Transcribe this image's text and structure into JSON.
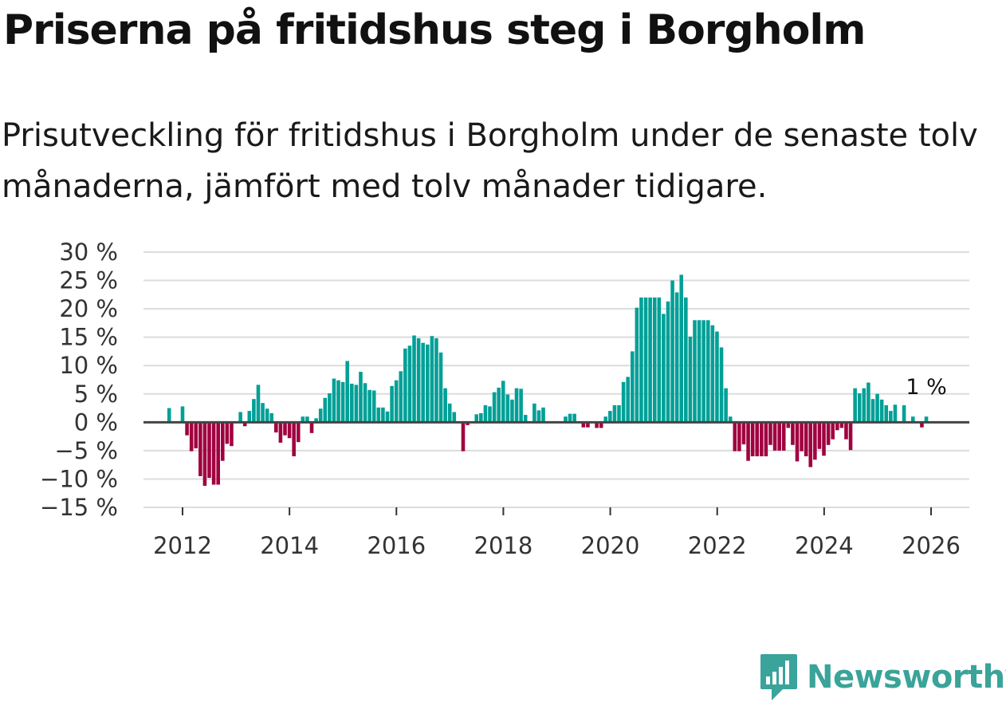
{
  "title": "Priserna på fritidshus steg i Borgholm",
  "subtitle": "Prisutveckling för fritidshus i Borgholm under de senaste tolv månaderna, jämfört med tolv månader tidigare.",
  "brand": "Newsworthy",
  "colors": {
    "positive": "#00a097",
    "negative": "#a0003f",
    "brand": "#3aa39a"
  },
  "chart_data": {
    "type": "bar",
    "title": "Priserna på fritidshus steg i Borgholm",
    "xlabel": "",
    "ylabel": "",
    "ylim": [
      -15,
      30
    ],
    "y_ticks": [
      30,
      25,
      20,
      15,
      10,
      5,
      0,
      -5,
      -10,
      -15
    ],
    "y_tick_labels": [
      "30 %",
      "25 %",
      "20 %",
      "15 %",
      "10 %",
      "5 %",
      "0 %",
      "−5 %",
      "−10 %",
      "−15 %"
    ],
    "x_ticks": [
      2012,
      2014,
      2016,
      2018,
      2020,
      2022,
      2024,
      2026
    ],
    "x_tick_labels": [
      "2012",
      "2014",
      "2016",
      "2018",
      "2020",
      "2022",
      "2024",
      "2026"
    ],
    "x_start": 2011.75,
    "step": 0.0833,
    "grid": true,
    "end_label": "1 %",
    "values": [
      2.5,
      0,
      0,
      2.8,
      -2.3,
      -5.1,
      -4.6,
      -9.5,
      -11.2,
      -9.8,
      -11,
      -11,
      -6.8,
      -3.8,
      -4.2,
      0,
      1.8,
      -0.7,
      2,
      4.1,
      6.6,
      3.4,
      2.4,
      1.6,
      -1.8,
      -3.6,
      -2.3,
      -2.8,
      -6,
      -3.5,
      1,
      1,
      -1.9,
      0.7,
      2.4,
      4.3,
      5.1,
      7.7,
      7.4,
      7.1,
      10.8,
      6.8,
      6.6,
      8.9,
      6.9,
      5.7,
      5.6,
      2.6,
      2.6,
      1.9,
      6.4,
      7.4,
      9,
      13,
      13.5,
      15.3,
      14.8,
      14,
      13.7,
      15.2,
      14.8,
      12.3,
      6,
      3.3,
      1.8,
      0,
      -5.1,
      -0.5,
      0,
      1.4,
      1.6,
      3,
      2.8,
      5.3,
      6.1,
      7.3,
      4.9,
      4,
      6,
      5.9,
      1.3,
      0,
      3.3,
      2.1,
      2.6,
      0,
      0,
      0,
      0,
      1,
      1.5,
      1.5,
      0,
      -0.9,
      -0.9,
      0,
      -1,
      -1,
      1,
      2,
      3,
      3,
      7.1,
      8,
      12.5,
      20.2,
      22,
      22,
      22,
      22,
      22,
      19.1,
      21.3,
      25,
      22.9,
      26,
      22,
      15.1,
      18,
      18,
      18,
      18,
      17.1,
      16,
      13.2,
      6,
      1,
      -5.1,
      -5.1,
      -3.9,
      -6.8,
      -6,
      -6,
      -6,
      -6,
      -4,
      -5,
      -5,
      -5,
      -1,
      -4,
      -6.9,
      -5.1,
      -6,
      -7.9,
      -6.6,
      -4.7,
      -5.9,
      -4,
      -3,
      -1.4,
      -1,
      -3,
      -4.9,
      6,
      5.1,
      6,
      7,
      4.1,
      5,
      4,
      3,
      2,
      3.1,
      0,
      3,
      0,
      1,
      0,
      -0.9,
      1
    ]
  }
}
